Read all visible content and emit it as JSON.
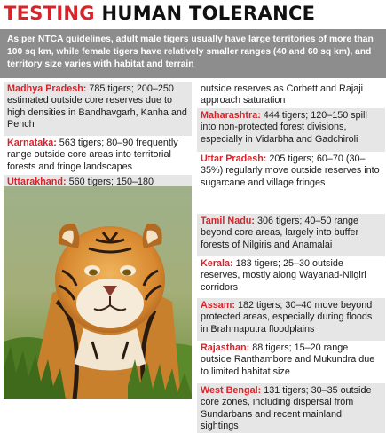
{
  "headline": {
    "accent": "TESTING",
    "rest": "HUMAN TOLERANCE"
  },
  "intro": "As per NTCA guidelines, adult male tigers usually have large territories of more than 100 sq km, while female tigers have relatively smaller ranges (40 and 60 sq km), and territory size varies with habitat and terrain",
  "left_entries": [
    {
      "state": "Madhya Pradesh:",
      "text": " 785 tigers; 200–250 estimated outside core reserves due to high densities in Bandhavgarh, Kanha and Pench"
    },
    {
      "state": "Karnataka:",
      "text": " 563 tigers; 80–90 frequently range outside core areas into territorial forests and fringe landscapes"
    },
    {
      "state": "Uttarakhand:",
      "text": " 560 tigers; 150–180 operate"
    }
  ],
  "right_continuation": "outside reserves as Corbett and Rajaji approach saturation",
  "right_entries": [
    {
      "state": "Maharashtra:",
      "text": " 444 tigers; 120–150 spill into non-protected forest divisions, especially in Vidarbha and Gadchiroli"
    },
    {
      "state": "Uttar Pradesh:",
      "text": " 205 tigers; 60–70 (30–35%) regularly move outside reserves into sugarcane and village fringes"
    },
    {
      "state": "Tamil Nadu:",
      "text": " 306 tigers; 40–50 range beyond core areas, largely into buffer forests of Nilgiris and Anamalai"
    },
    {
      "state": "Kerala:",
      "text": " 183 tigers; 25–30 outside reserves, mostly along Wayanad-Nilgiri corridors"
    },
    {
      "state": "Assam:",
      "text": " 182 tigers; 30–40 move beyond protected areas, especially during floods in Brahmaputra floodplains"
    },
    {
      "state": "Rajasthan:",
      "text": " 88 tigers; 15–20 range outside Ranthambore and Mukundra due to limited habitat size"
    },
    {
      "state": "West Bengal:",
      "text": " 131 tigers; 30–35 outside core zones, including dispersal from Sundarbans and recent mainland sightings"
    }
  ],
  "colors": {
    "accent": "#d8232a",
    "intro_bg": "#8d8d8d",
    "shade": "#e6e6e6"
  }
}
